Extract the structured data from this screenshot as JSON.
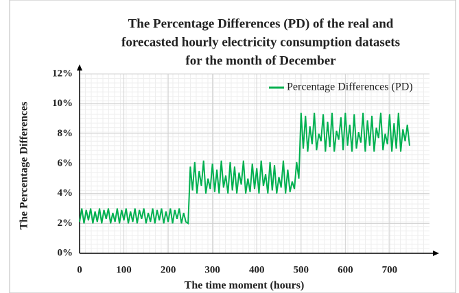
{
  "chart_data": {
    "type": "line",
    "title_lines": [
      "The Percentage Differences (PD) of the real and",
      "forecasted hourly electricity consumption datasets",
      "for the month of December"
    ],
    "xlabel": "The time moment (hours)",
    "ylabel": "The Percentage Differences",
    "x": [
      0,
      5,
      10,
      15,
      20,
      25,
      30,
      35,
      40,
      45,
      50,
      55,
      60,
      65,
      70,
      75,
      80,
      85,
      90,
      95,
      100,
      105,
      110,
      115,
      120,
      125,
      130,
      135,
      140,
      145,
      150,
      155,
      160,
      165,
      170,
      175,
      180,
      185,
      190,
      195,
      200,
      205,
      210,
      215,
      220,
      225,
      230,
      235,
      240,
      245,
      250,
      255,
      260,
      265,
      270,
      275,
      280,
      285,
      290,
      295,
      300,
      305,
      310,
      315,
      320,
      325,
      330,
      335,
      340,
      345,
      350,
      355,
      360,
      365,
      370,
      375,
      380,
      385,
      390,
      395,
      400,
      405,
      410,
      415,
      420,
      425,
      430,
      435,
      440,
      445,
      450,
      455,
      460,
      465,
      470,
      475,
      480,
      485,
      490,
      495,
      500,
      505,
      510,
      515,
      520,
      525,
      530,
      535,
      540,
      545,
      550,
      555,
      560,
      565,
      570,
      575,
      580,
      585,
      590,
      595,
      600,
      605,
      610,
      615,
      620,
      625,
      630,
      635,
      640,
      645,
      650,
      655,
      660,
      665,
      670,
      675,
      680,
      685,
      690,
      695,
      700,
      705,
      710,
      715,
      720,
      725,
      730,
      735,
      740,
      745
    ],
    "series": [
      {
        "name": "Percentage Differences (PD)",
        "color": "#00b050",
        "values": [
          2.1,
          3.0,
          2.0,
          2.9,
          2.2,
          3.0,
          2.0,
          2.8,
          2.1,
          3.0,
          2.0,
          2.9,
          2.3,
          3.0,
          2.0,
          2.7,
          2.1,
          3.0,
          2.0,
          2.9,
          2.2,
          3.0,
          2.0,
          2.8,
          2.1,
          3.0,
          2.0,
          2.9,
          2.3,
          3.0,
          2.0,
          2.7,
          2.1,
          3.0,
          2.0,
          2.9,
          2.2,
          3.0,
          2.0,
          2.8,
          2.1,
          3.0,
          2.0,
          2.9,
          2.3,
          3.0,
          2.0,
          2.7,
          2.1,
          2.0,
          5.8,
          4.2,
          6.1,
          4.0,
          5.5,
          4.5,
          6.2,
          4.0,
          5.0,
          4.3,
          6.0,
          4.1,
          5.6,
          4.0,
          6.2,
          4.4,
          5.2,
          4.0,
          6.1,
          4.2,
          5.8,
          4.0,
          5.4,
          4.6,
          6.2,
          4.0,
          5.0,
          4.1,
          6.0,
          4.3,
          5.7,
          4.0,
          6.2,
          4.5,
          5.3,
          4.0,
          6.1,
          4.2,
          5.9,
          4.0,
          5.1,
          4.4,
          6.2,
          4.0,
          5.6,
          4.1,
          4.8,
          4.3,
          6.1,
          5.0,
          9.4,
          7.0,
          9.2,
          6.8,
          8.5,
          7.3,
          9.4,
          6.9,
          8.0,
          7.5,
          9.3,
          6.8,
          8.8,
          7.1,
          9.4,
          6.8,
          8.2,
          7.6,
          9.1,
          6.9,
          9.4,
          7.2,
          8.6,
          6.8,
          9.3,
          7.0,
          8.1,
          7.4,
          9.4,
          6.8,
          8.9,
          7.2,
          9.2,
          6.8,
          8.4,
          7.7,
          9.4,
          6.9,
          8.0,
          7.3,
          9.3,
          6.8,
          8.7,
          7.0,
          9.4,
          6.8,
          8.3,
          7.5,
          8.6,
          7.2
        ]
      }
    ],
    "xlim": [
      0,
      790
    ],
    "xticks": [
      0,
      100,
      200,
      300,
      400,
      500,
      600,
      700
    ],
    "ylim": [
      0,
      12
    ],
    "yticks": [
      {
        "value": 0,
        "label": "0%"
      },
      {
        "value": 2,
        "label": "2%"
      },
      {
        "value": 4,
        "label": "4%"
      },
      {
        "value": 6,
        "label": "6%"
      },
      {
        "value": 8,
        "label": "8%"
      },
      {
        "value": 10,
        "label": "10%"
      },
      {
        "value": 12,
        "label": "12%"
      }
    ],
    "grid": true,
    "legend": "upper right"
  }
}
